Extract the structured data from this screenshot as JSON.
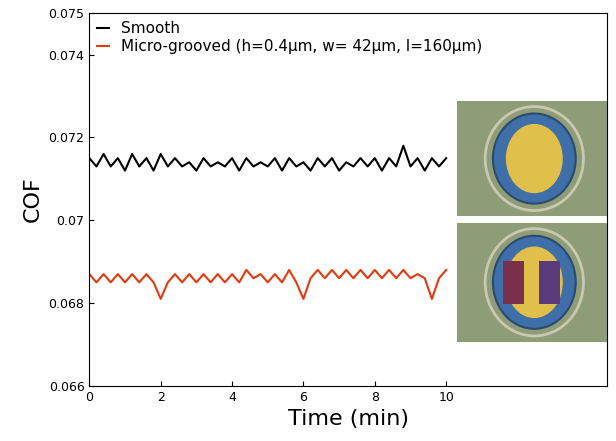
{
  "chart_data": {
    "type": "line",
    "xlabel": "Time (min)",
    "ylabel": "COF",
    "x": [
      0,
      0.2,
      0.4,
      0.6,
      0.8,
      1.0,
      1.2,
      1.4,
      1.6,
      1.8,
      2.0,
      2.2,
      2.4,
      2.6,
      2.8,
      3.0,
      3.2,
      3.4,
      3.6,
      3.8,
      4.0,
      4.2,
      4.4,
      4.6,
      4.8,
      5.0,
      5.2,
      5.4,
      5.6,
      5.8,
      6.0,
      6.2,
      6.4,
      6.6,
      6.8,
      7.0,
      7.2,
      7.4,
      7.6,
      7.8,
      8.0,
      8.2,
      8.4,
      8.6,
      8.8,
      9.0,
      9.2,
      9.4,
      9.6,
      9.8,
      10.0
    ],
    "series": [
      {
        "name": "Smooth",
        "color": "#000000",
        "values": [
          0.0715,
          0.0713,
          0.0716,
          0.0713,
          0.0715,
          0.0712,
          0.0716,
          0.0713,
          0.0715,
          0.0712,
          0.0716,
          0.0713,
          0.0715,
          0.0713,
          0.0714,
          0.0712,
          0.0715,
          0.0713,
          0.0714,
          0.0713,
          0.0715,
          0.0712,
          0.0715,
          0.0713,
          0.0714,
          0.0713,
          0.0715,
          0.0712,
          0.0715,
          0.0713,
          0.0714,
          0.0712,
          0.0715,
          0.0713,
          0.0715,
          0.0712,
          0.0714,
          0.0713,
          0.0715,
          0.0713,
          0.0715,
          0.0712,
          0.0715,
          0.0713,
          0.0718,
          0.0713,
          0.0715,
          0.0712,
          0.0715,
          0.0713,
          0.0715
        ]
      },
      {
        "name": "Micro-grooved (h=0.4μm, w= 42μm, l=160μm)",
        "color": "#e8380d",
        "values": [
          0.0687,
          0.0685,
          0.0687,
          0.0685,
          0.0687,
          0.0685,
          0.0687,
          0.0685,
          0.0687,
          0.0685,
          0.0681,
          0.0685,
          0.0687,
          0.0685,
          0.0687,
          0.0685,
          0.0687,
          0.0685,
          0.0687,
          0.0685,
          0.0687,
          0.0685,
          0.0688,
          0.0686,
          0.0687,
          0.0685,
          0.0687,
          0.0685,
          0.0688,
          0.0685,
          0.0681,
          0.0686,
          0.0688,
          0.0686,
          0.0688,
          0.0686,
          0.0688,
          0.0686,
          0.0688,
          0.0686,
          0.0688,
          0.0686,
          0.0688,
          0.0686,
          0.0688,
          0.0686,
          0.0687,
          0.0686,
          0.0681,
          0.0686,
          0.0688
        ]
      }
    ],
    "xlim": [
      0,
      14.5
    ],
    "xticks": [
      0,
      2,
      4,
      6,
      8,
      10
    ],
    "ylim": [
      0.066,
      0.075
    ],
    "yticks": [
      0.066,
      0.068,
      0.07,
      0.072,
      0.074,
      0.075
    ],
    "legend": "upper left",
    "grid": false
  }
}
